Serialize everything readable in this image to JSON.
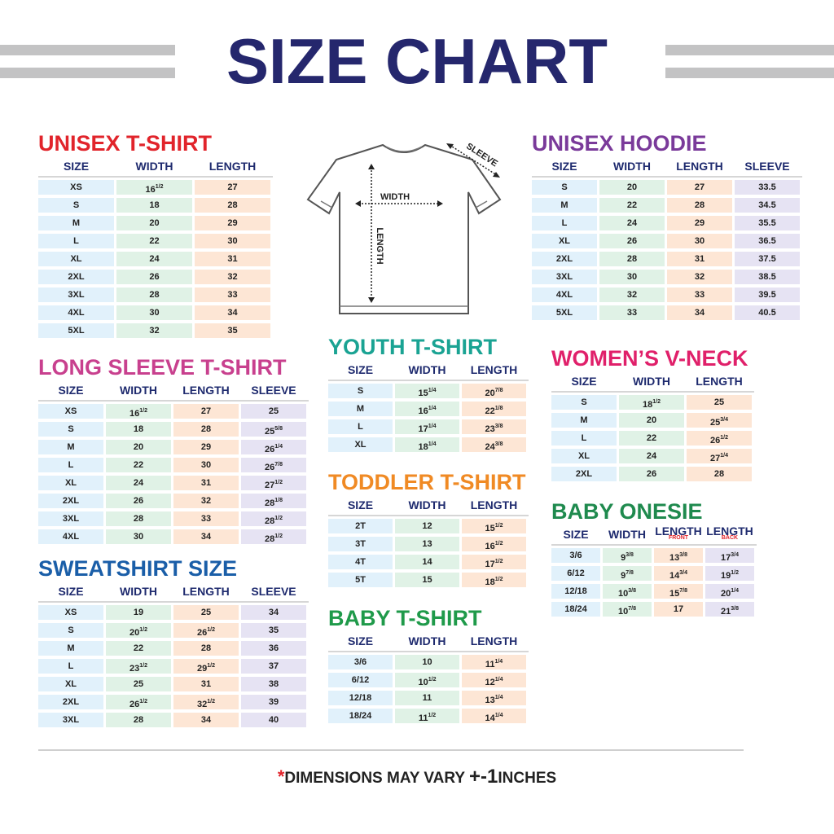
{
  "title": "SIZE CHART",
  "diagram": {
    "width": "WIDTH",
    "length": "LENGTH",
    "sleeve": "SLEEVE"
  },
  "tables": [
    {
      "title": "UNISEX T-SHIRT",
      "headers": [
        "SIZE",
        "WIDTH",
        "LENGTH"
      ],
      "rows": [
        [
          "XS",
          [
            "16",
            "1/2"
          ],
          "27"
        ],
        [
          "S",
          "18",
          "28"
        ],
        [
          "M",
          "20",
          "29"
        ],
        [
          "L",
          "22",
          "30"
        ],
        [
          "XL",
          "24",
          "31"
        ],
        [
          "2XL",
          "26",
          "32"
        ],
        [
          "3XL",
          "28",
          "33"
        ],
        [
          "4XL",
          "30",
          "34"
        ],
        [
          "5XL",
          "32",
          "35"
        ]
      ]
    },
    {
      "title": "LONG SLEEVE T-SHIRT",
      "headers": [
        "SIZE",
        "WIDTH",
        "LENGTH",
        "SLEEVE"
      ],
      "rows": [
        [
          "XS",
          [
            "16",
            "1/2"
          ],
          "27",
          "25"
        ],
        [
          "S",
          "18",
          "28",
          [
            "25",
            "5/8"
          ]
        ],
        [
          "M",
          "20",
          "29",
          [
            "26",
            "1/4"
          ]
        ],
        [
          "L",
          "22",
          "30",
          [
            "26",
            "7/8"
          ]
        ],
        [
          "XL",
          "24",
          "31",
          [
            "27",
            "1/2"
          ]
        ],
        [
          "2XL",
          "26",
          "32",
          [
            "28",
            "1/8"
          ]
        ],
        [
          "3XL",
          "28",
          "33",
          [
            "28",
            "1/2"
          ]
        ],
        [
          "4XL",
          "30",
          "34",
          [
            "28",
            "1/2"
          ]
        ]
      ]
    },
    {
      "title": "SWEATSHIRT SIZE",
      "headers": [
        "SIZE",
        "WIDTH",
        "LENGTH",
        "SLEEVE"
      ],
      "rows": [
        [
          "XS",
          "19",
          "25",
          "34"
        ],
        [
          "S",
          [
            "20",
            "1/2"
          ],
          [
            "26",
            "1/2"
          ],
          "35"
        ],
        [
          "M",
          "22",
          "28",
          "36"
        ],
        [
          "L",
          [
            "23",
            "1/2"
          ],
          [
            "29",
            "1/2"
          ],
          "37"
        ],
        [
          "XL",
          "25",
          "31",
          "38"
        ],
        [
          "2XL",
          [
            "26",
            "1/2"
          ],
          [
            "32",
            "1/2"
          ],
          "39"
        ],
        [
          "3XL",
          "28",
          "34",
          "40"
        ]
      ]
    },
    {
      "title": "YOUTH T-SHIRT",
      "headers": [
        "SIZE",
        "WIDTH",
        "LENGTH"
      ],
      "rows": [
        [
          "S",
          [
            "15",
            "1/4"
          ],
          [
            "20",
            "7/8"
          ]
        ],
        [
          "M",
          [
            "16",
            "1/4"
          ],
          [
            "22",
            "1/8"
          ]
        ],
        [
          "L",
          [
            "17",
            "1/4"
          ],
          [
            "23",
            "3/8"
          ]
        ],
        [
          "XL",
          [
            "18",
            "1/4"
          ],
          [
            "24",
            "3/8"
          ]
        ]
      ]
    },
    {
      "title": "TODDLER T-SHIRT",
      "headers": [
        "SIZE",
        "WIDTH",
        "LENGTH"
      ],
      "rows": [
        [
          "2T",
          "12",
          [
            "15",
            "1/2"
          ]
        ],
        [
          "3T",
          "13",
          [
            "16",
            "1/2"
          ]
        ],
        [
          "4T",
          "14",
          [
            "17",
            "1/2"
          ]
        ],
        [
          "5T",
          "15",
          [
            "18",
            "1/2"
          ]
        ]
      ]
    },
    {
      "title": "BABY T-SHIRT",
      "headers": [
        "SIZE",
        "WIDTH",
        "LENGTH"
      ],
      "rows": [
        [
          "3/6",
          "10",
          [
            "11",
            "1/4"
          ]
        ],
        [
          "6/12",
          [
            "10",
            "1/2"
          ],
          [
            "12",
            "1/4"
          ]
        ],
        [
          "12/18",
          "11",
          [
            "13",
            "1/4"
          ]
        ],
        [
          "18/24",
          [
            "11",
            "1/2"
          ],
          [
            "14",
            "1/4"
          ]
        ]
      ]
    },
    {
      "title": "UNISEX HOODIE",
      "headers": [
        "SIZE",
        "WIDTH",
        "LENGTH",
        "SLEEVE"
      ],
      "rows": [
        [
          "S",
          "20",
          "27",
          "33.5"
        ],
        [
          "M",
          "22",
          "28",
          "34.5"
        ],
        [
          "L",
          "24",
          "29",
          "35.5"
        ],
        [
          "XL",
          "26",
          "30",
          "36.5"
        ],
        [
          "2XL",
          "28",
          "31",
          "37.5"
        ],
        [
          "3XL",
          "30",
          "32",
          "38.5"
        ],
        [
          "4XL",
          "32",
          "33",
          "39.5"
        ],
        [
          "5XL",
          "33",
          "34",
          "40.5"
        ]
      ]
    },
    {
      "title": "WOMEN’S V-NECK",
      "headers": [
        "SIZE",
        "WIDTH",
        "LENGTH"
      ],
      "rows": [
        [
          "S",
          [
            "18",
            "1/2"
          ],
          "25"
        ],
        [
          "M",
          "20",
          [
            "25",
            "3/4"
          ]
        ],
        [
          "L",
          "22",
          [
            "26",
            "1/2"
          ]
        ],
        [
          "XL",
          "24",
          [
            "27",
            "1/4"
          ]
        ],
        [
          "2XL",
          "26",
          "28"
        ]
      ]
    },
    {
      "title": "BABY ONESIE",
      "headers": [
        "SIZE",
        "WIDTH",
        [
          "LENGTH",
          "FRONT"
        ],
        [
          "LENGTH",
          "BACK"
        ]
      ],
      "rows": [
        [
          "3/6",
          [
            "9",
            "3/8"
          ],
          [
            "13",
            "3/8"
          ],
          [
            "17",
            "3/4"
          ]
        ],
        [
          "6/12",
          [
            "9",
            "7/8"
          ],
          [
            "14",
            "3/4"
          ],
          [
            "19",
            "1/2"
          ]
        ],
        [
          "12/18",
          [
            "10",
            "3/8"
          ],
          [
            "15",
            "7/8"
          ],
          [
            "20",
            "1/4"
          ]
        ],
        [
          "18/24",
          [
            "10",
            "7/8"
          ],
          "17",
          [
            "21",
            "3/8"
          ]
        ]
      ]
    }
  ],
  "footer": {
    "asterisk": "*",
    "text": "DIMENSIONS MAY VARY",
    "plus": "+",
    "tolerance": "-1",
    "unit": "INCHES"
  }
}
